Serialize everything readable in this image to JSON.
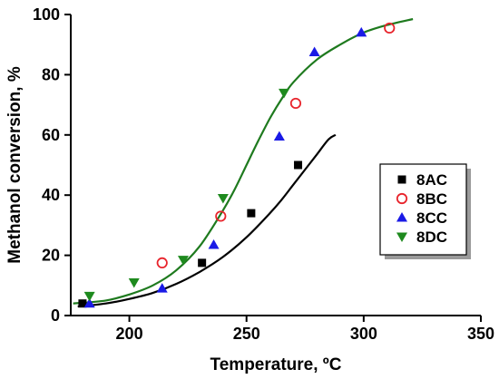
{
  "chart_data": {
    "type": "scatter",
    "xlabel": "Temperature, ºC",
    "ylabel": "Methanol conversion, %",
    "xlim": [
      175,
      350
    ],
    "ylim": [
      0,
      100
    ],
    "xticks": [
      200,
      250,
      300,
      350
    ],
    "yticks": [
      0,
      20,
      40,
      60,
      80,
      100
    ],
    "grid": false,
    "legend_position": "right",
    "series": [
      {
        "name": "8AC",
        "marker": "square",
        "color": "#000000",
        "filled": true,
        "points": [
          [
            180,
            4
          ],
          [
            231,
            17.5
          ],
          [
            252,
            34
          ],
          [
            272,
            50
          ]
        ]
      },
      {
        "name": "8BC",
        "marker": "circle",
        "color": "#e8242c",
        "filled": false,
        "points": [
          [
            214,
            17.5
          ],
          [
            239,
            33
          ],
          [
            271,
            70.5
          ],
          [
            311,
            95.5
          ]
        ]
      },
      {
        "name": "8CC",
        "marker": "triangle-up",
        "color": "#1a1ae6",
        "filled": true,
        "points": [
          [
            183,
            4
          ],
          [
            214,
            9
          ],
          [
            236,
            23.5
          ],
          [
            264,
            59.5
          ],
          [
            279,
            87.5
          ],
          [
            299,
            94
          ]
        ]
      },
      {
        "name": "8DC",
        "marker": "triangle-down",
        "color": "#1e8a1e",
        "filled": true,
        "points": [
          [
            183,
            6.5
          ],
          [
            202,
            11
          ],
          [
            223,
            18.5
          ],
          [
            240,
            39
          ],
          [
            266,
            74
          ]
        ]
      }
    ],
    "fit_curves": [
      {
        "color": "#000000",
        "points": [
          [
            178,
            3
          ],
          [
            190,
            4
          ],
          [
            200,
            5.5
          ],
          [
            210,
            7.5
          ],
          [
            220,
            10.5
          ],
          [
            230,
            14.5
          ],
          [
            240,
            19.5
          ],
          [
            250,
            26
          ],
          [
            260,
            34
          ],
          [
            265,
            38.5
          ],
          [
            270,
            43.5
          ],
          [
            275,
            48.5
          ],
          [
            280,
            53.5
          ],
          [
            285,
            58.5
          ],
          [
            288,
            60
          ]
        ]
      },
      {
        "color": "#1e7a1e",
        "points": [
          [
            176,
            4
          ],
          [
            190,
            5
          ],
          [
            200,
            7
          ],
          [
            210,
            10
          ],
          [
            220,
            15
          ],
          [
            230,
            23
          ],
          [
            240,
            35
          ],
          [
            245,
            42
          ],
          [
            250,
            50
          ],
          [
            255,
            58
          ],
          [
            260,
            65.5
          ],
          [
            265,
            72
          ],
          [
            270,
            77.5
          ],
          [
            280,
            85
          ],
          [
            290,
            90
          ],
          [
            300,
            94
          ],
          [
            310,
            96.5
          ],
          [
            321,
            98.5
          ]
        ]
      }
    ]
  }
}
